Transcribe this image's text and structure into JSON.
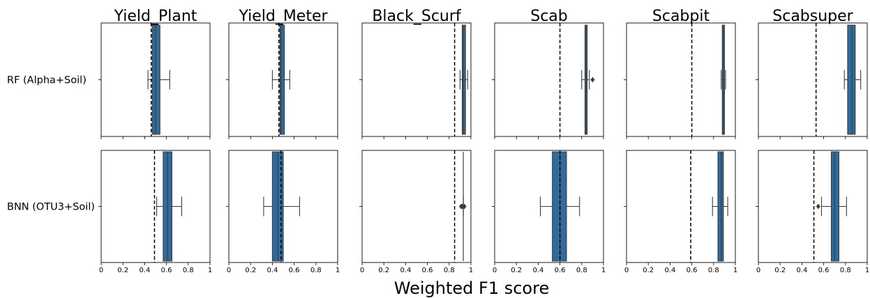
{
  "chart_data": {
    "type": "box",
    "xlabel": "Weighted F1 score",
    "xlim": [
      0,
      1
    ],
    "xticks": [
      "0",
      "0.2",
      "0.4",
      "0.6",
      "0.8",
      "1"
    ],
    "panel_titles": [
      "Yield_Plant",
      "Yield_Meter",
      "Black_Scurf",
      "Scab",
      "Scabpit",
      "Scabsuper"
    ],
    "row_labels": [
      "RF (Alpha+Soil)",
      "BNN (OTU3+Soil)"
    ],
    "box_color": "#2e6c9e",
    "rows": [
      [
        {
          "whislo": 0.43,
          "q1": 0.47,
          "med": 0.5,
          "q3": 0.54,
          "whishi": 0.63,
          "fliers": [],
          "ref": 0.46
        },
        {
          "whislo": 0.4,
          "q1": 0.47,
          "med": 0.48,
          "q3": 0.51,
          "whishi": 0.56,
          "fliers": [],
          "ref": 0.46
        },
        {
          "whislo": 0.9,
          "q1": 0.92,
          "med": 0.93,
          "q3": 0.95,
          "whishi": 0.97,
          "fliers": [],
          "ref": 0.85
        },
        {
          "whislo": 0.8,
          "q1": 0.83,
          "med": 0.84,
          "q3": 0.85,
          "whishi": 0.87,
          "fliers": [
            0.9
          ],
          "ref": 0.6
        },
        {
          "whislo": 0.87,
          "q1": 0.88,
          "med": 0.89,
          "q3": 0.9,
          "whishi": 0.91,
          "fliers": [],
          "ref": 0.6
        },
        {
          "whislo": 0.79,
          "q1": 0.82,
          "med": 0.86,
          "q3": 0.89,
          "whishi": 0.94,
          "fliers": [],
          "ref": 0.53
        }
      ],
      [
        {
          "whislo": 0.51,
          "q1": 0.57,
          "med": 0.61,
          "q3": 0.65,
          "whishi": 0.74,
          "fliers": [],
          "ref": 0.49
        },
        {
          "whislo": 0.32,
          "q1": 0.4,
          "med": 0.45,
          "q3": 0.5,
          "whishi": 0.65,
          "fliers": [],
          "ref": 0.48
        },
        {
          "whislo": 0.93,
          "q1": 0.93,
          "med": 0.93,
          "q3": 0.93,
          "whishi": 0.93,
          "fliers": [
            0.91,
            0.92,
            0.94
          ],
          "ref": 0.85
        },
        {
          "whislo": 0.42,
          "q1": 0.53,
          "med": 0.6,
          "q3": 0.66,
          "whishi": 0.78,
          "fliers": [],
          "ref": 0.6
        },
        {
          "whislo": 0.79,
          "q1": 0.84,
          "med": 0.87,
          "q3": 0.89,
          "whishi": 0.93,
          "fliers": [],
          "ref": 0.59
        },
        {
          "whislo": 0.58,
          "q1": 0.67,
          "med": 0.7,
          "q3": 0.74,
          "whishi": 0.81,
          "fliers": [
            0.55
          ],
          "ref": 0.51
        }
      ]
    ]
  }
}
